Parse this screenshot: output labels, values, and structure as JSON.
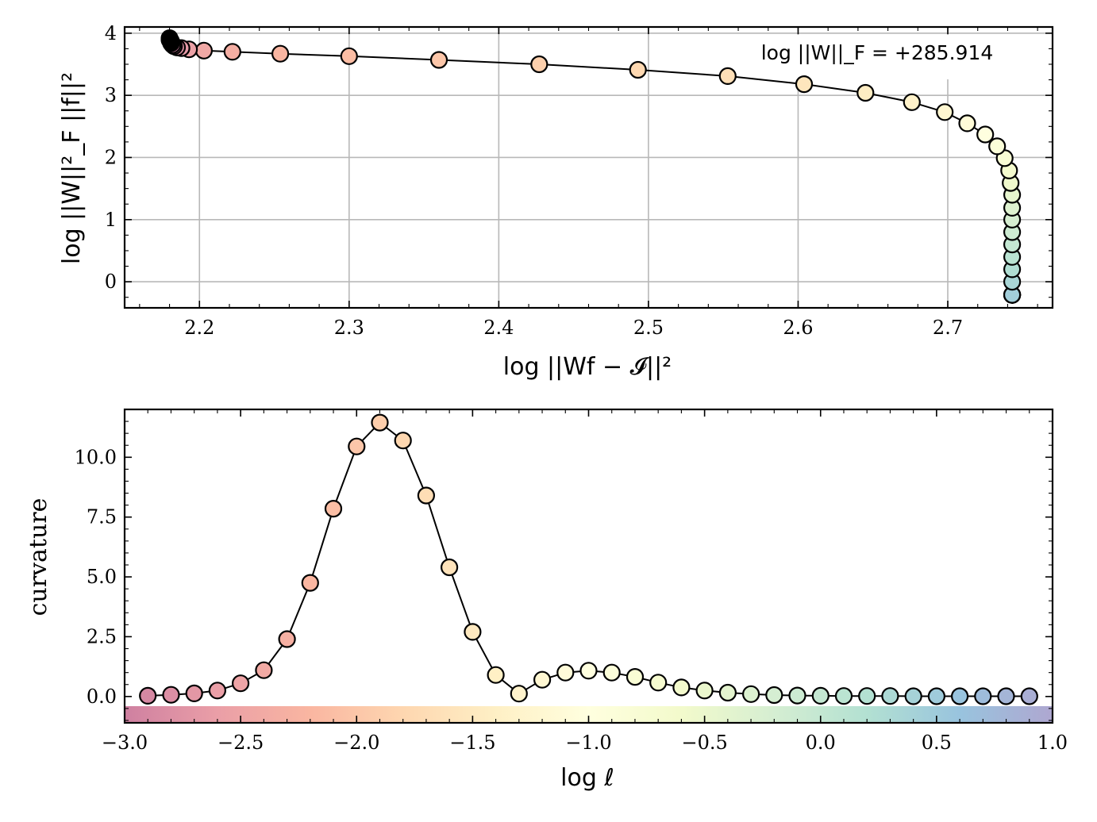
{
  "chart_data": [
    {
      "type": "line",
      "xlabel": "log  ||Wf − 𝓘||²",
      "ylabel": "log  ||W||²_F ||f||²",
      "xlim": [
        2.15,
        2.77
      ],
      "ylim": [
        -0.42,
        4.1
      ],
      "xticks": [
        "2.2",
        "2.3",
        "2.4",
        "2.5",
        "2.6",
        "2.7"
      ],
      "xtick_values": [
        2.2,
        2.3,
        2.4,
        2.5,
        2.6,
        2.7
      ],
      "yticks": [
        "0",
        "1",
        "2",
        "3",
        "4"
      ],
      "ytick_values": [
        0,
        1,
        2,
        3,
        4
      ],
      "grid": true,
      "annotation": "log  ||W||_F = +285.914",
      "annotation_position": "top-right",
      "series": [
        {
          "color_by": "log ℓ",
          "x": [
            2.18,
            2.18,
            2.181,
            2.181,
            2.182,
            2.183,
            2.185,
            2.188,
            2.193,
            2.203,
            2.222,
            2.254,
            2.3,
            2.36,
            2.427,
            2.493,
            2.553,
            2.604,
            2.645,
            2.676,
            2.698,
            2.713,
            2.725,
            2.733,
            2.738,
            2.741,
            2.742,
            2.743,
            2.743,
            2.743,
            2.743,
            2.743,
            2.743,
            2.743,
            2.743,
            2.743,
            2.743,
            2.743,
            2.743,
            2.743
          ],
          "y": [
            3.92,
            3.89,
            3.87,
            3.84,
            3.81,
            3.79,
            3.77,
            3.76,
            3.74,
            3.72,
            3.7,
            3.67,
            3.63,
            3.57,
            3.5,
            3.41,
            3.31,
            3.18,
            3.04,
            2.89,
            2.73,
            2.55,
            2.37,
            2.18,
            1.99,
            1.79,
            1.59,
            1.4,
            1.19,
            1.0,
            0.8,
            0.6,
            0.4,
            0.2,
            0.0,
            -0.21,
            -0.21,
            -0.21,
            -0.21,
            -0.21
          ]
        }
      ]
    },
    {
      "type": "line",
      "xlabel": "log  ℓ",
      "ylabel": "curvature",
      "xlim": [
        -3.0,
        1.0
      ],
      "ylim": [
        -1.1,
        12.0
      ],
      "xticks": [
        "−3.0",
        "−2.5",
        "−2.0",
        "−1.5",
        "−1.0",
        "−0.5",
        "0.0",
        "0.5",
        "1.0"
      ],
      "xtick_values": [
        -3.0,
        -2.5,
        -2.0,
        -1.5,
        -1.0,
        -0.5,
        0.0,
        0.5,
        1.0
      ],
      "yticks": [
        "0.0",
        "2.5",
        "5.0",
        "7.5",
        "10.0"
      ],
      "ytick_values": [
        0.0,
        2.5,
        5.0,
        7.5,
        10.0
      ],
      "grid": false,
      "colorbar": {
        "range": [
          -3.0,
          1.0
        ],
        "colormap": "Spectral"
      },
      "series": [
        {
          "color_by": "log ℓ",
          "x": [
            -2.9,
            -2.8,
            -2.7,
            -2.6,
            -2.5,
            -2.4,
            -2.3,
            -2.2,
            -2.1,
            -2.0,
            -1.9,
            -1.8,
            -1.7,
            -1.6,
            -1.5,
            -1.4,
            -1.3,
            -1.2,
            -1.1,
            -1.0,
            -0.9,
            -0.8,
            -0.7,
            -0.6,
            -0.5,
            -0.4,
            -0.3,
            -0.2,
            -0.1,
            0.0,
            0.1,
            0.2,
            0.3,
            0.4,
            0.5,
            0.6,
            0.7,
            0.8,
            0.9
          ],
          "y": [
            0.03,
            0.07,
            0.13,
            0.25,
            0.55,
            1.1,
            2.4,
            4.75,
            7.85,
            10.45,
            11.45,
            10.7,
            8.4,
            5.4,
            2.7,
            0.9,
            0.12,
            0.7,
            1.0,
            1.08,
            1.0,
            0.82,
            0.58,
            0.38,
            0.25,
            0.16,
            0.1,
            0.06,
            0.04,
            0.03,
            0.02,
            0.02,
            0.02,
            0.01,
            0.01,
            0.01,
            0.01,
            0.01,
            0.01
          ]
        }
      ]
    }
  ]
}
